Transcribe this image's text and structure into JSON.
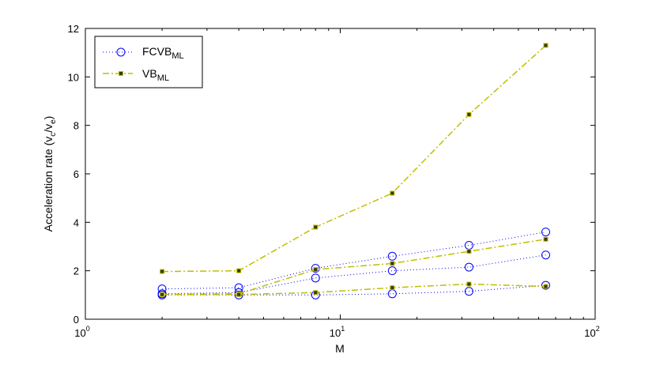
{
  "chart_data": {
    "type": "line",
    "xscale": "log",
    "xlim": [
      1,
      100
    ],
    "ylim": [
      0,
      12
    ],
    "grid": false,
    "legend_position": "top-left",
    "xlabel": "M",
    "ylabel": {
      "main": "Acceleration rate (v",
      "sub1": "c",
      "mid": "/v",
      "sub2": "e",
      "end": ")"
    },
    "x_ticks": [
      {
        "value": 1,
        "base": "10",
        "exp": "0"
      },
      {
        "value": 10,
        "base": "10",
        "exp": "1"
      },
      {
        "value": 100,
        "base": "10",
        "exp": "2"
      }
    ],
    "y_ticks": [
      {
        "value": 0,
        "label": "0"
      },
      {
        "value": 2,
        "label": "2"
      },
      {
        "value": 4,
        "label": "4"
      },
      {
        "value": 6,
        "label": "6"
      },
      {
        "value": 8,
        "label": "8"
      },
      {
        "value": 10,
        "label": "10"
      },
      {
        "value": 12,
        "label": "12"
      }
    ],
    "x": [
      2,
      4,
      8,
      16,
      32,
      64
    ],
    "legend": [
      {
        "key": "fcvb",
        "base": "FCVB",
        "sub": "ML",
        "color": "#0000ff",
        "line": "dotted",
        "marker": "circle"
      },
      {
        "key": "vb",
        "base": "VB",
        "sub": "ML",
        "color": "#bfbf00",
        "line": "dashdot",
        "marker": "square"
      }
    ],
    "series": [
      {
        "group": "fcvb",
        "values": [
          1.25,
          1.3,
          2.1,
          2.6,
          3.05,
          3.6
        ]
      },
      {
        "group": "fcvb",
        "values": [
          1.05,
          1.1,
          1.7,
          2.0,
          2.15,
          2.65
        ]
      },
      {
        "group": "fcvb",
        "values": [
          1.0,
          1.0,
          1.0,
          1.05,
          1.15,
          1.4
        ]
      },
      {
        "group": "vb",
        "values": [
          1.97,
          2.0,
          3.8,
          5.2,
          8.45,
          11.3
        ]
      },
      {
        "group": "vb",
        "values": [
          1.02,
          1.05,
          2.05,
          2.3,
          2.8,
          3.3
        ]
      },
      {
        "group": "vb",
        "values": [
          1.02,
          1.02,
          1.1,
          1.3,
          1.45,
          1.35
        ]
      }
    ]
  }
}
